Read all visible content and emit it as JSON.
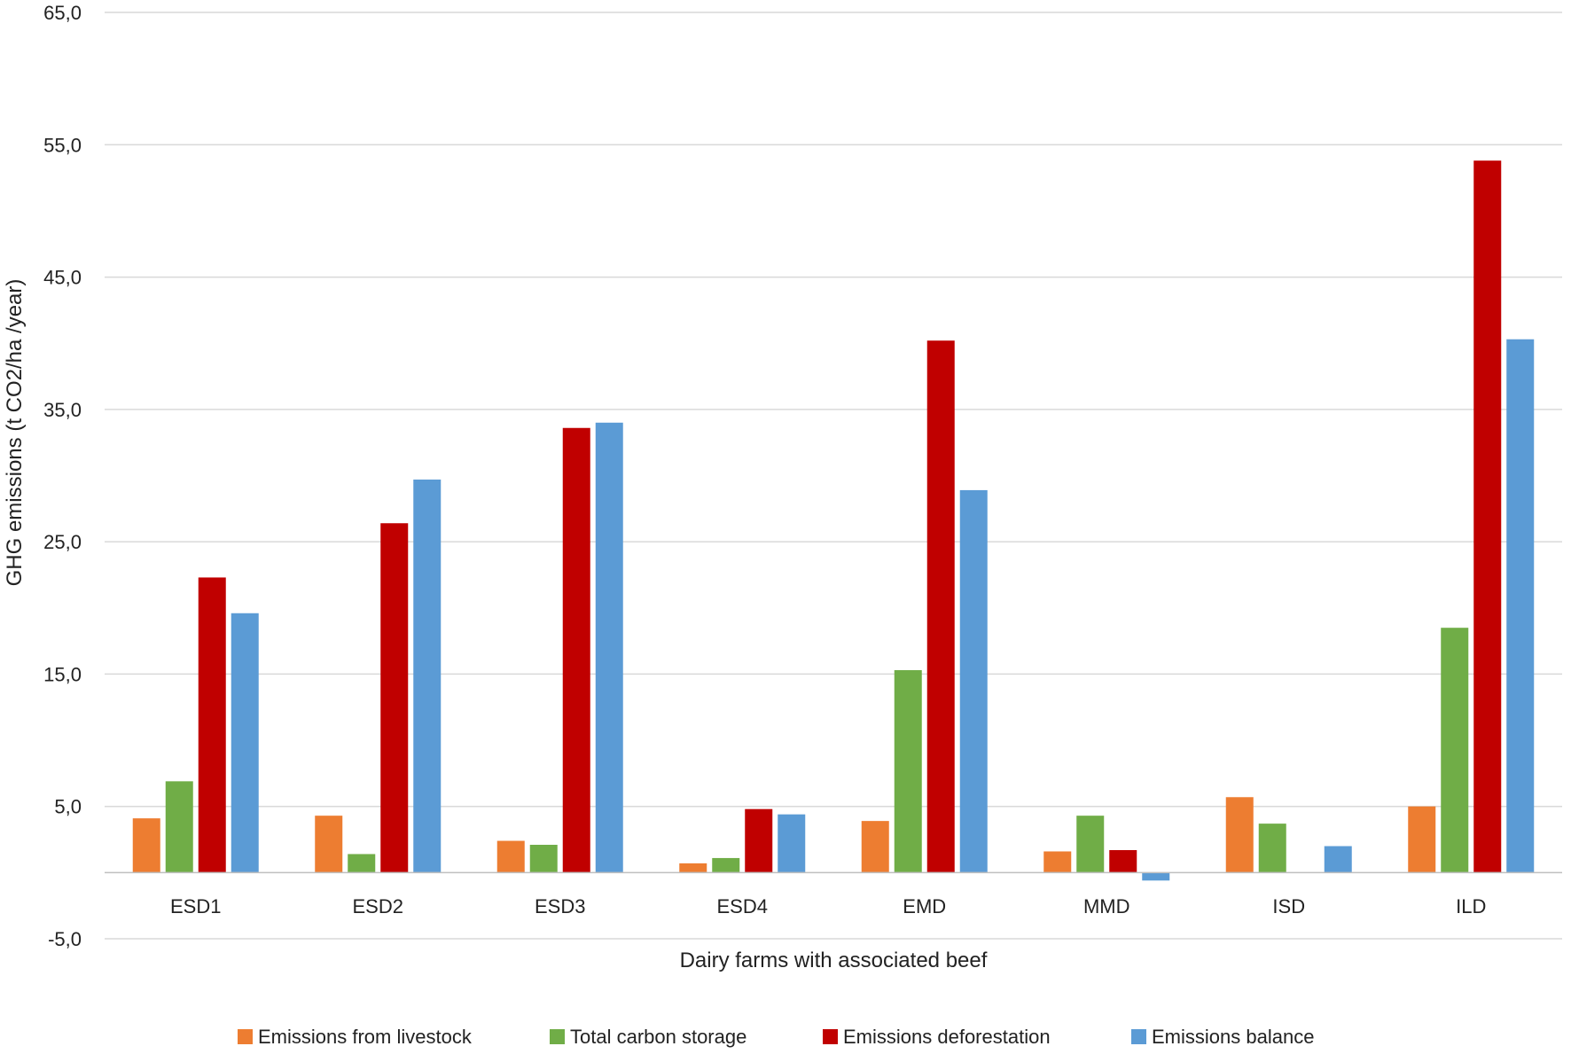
{
  "chart_data": {
    "type": "bar",
    "title": "",
    "xlabel": "Dairy farms with associated beef",
    "ylabel": "GHG emissions (t CO2/ha /year)",
    "ylim": [
      -5,
      65
    ],
    "yticks": [
      "-5,0",
      "5,0",
      "15,0",
      "25,0",
      "35,0",
      "45,0",
      "55,0",
      "65,0"
    ],
    "ytick_values": [
      -5,
      5,
      15,
      25,
      35,
      45,
      55,
      65
    ],
    "grid": true,
    "legend_position": "bottom",
    "categories": [
      "ESD1",
      "ESD2",
      "ESD3",
      "ESD4",
      "EMD",
      "MMD",
      "ISD",
      "ILD"
    ],
    "series": [
      {
        "name": "Emissions from livestock",
        "color": "#ED7D31",
        "values": [
          4.1,
          4.3,
          2.4,
          0.7,
          3.9,
          1.6,
          5.7,
          5.0
        ]
      },
      {
        "name": "Total carbon storage",
        "color": "#70AD47",
        "values": [
          6.9,
          1.4,
          2.1,
          1.1,
          15.3,
          4.3,
          3.7,
          18.5
        ]
      },
      {
        "name": "Emissions deforestation",
        "color": "#C00000",
        "values": [
          22.3,
          26.4,
          33.6,
          4.8,
          40.2,
          1.7,
          0,
          53.8
        ]
      },
      {
        "name": "Emissions balance",
        "color": "#5B9BD5",
        "values": [
          19.6,
          29.7,
          34.0,
          4.4,
          28.9,
          -0.6,
          2.0,
          40.3
        ]
      }
    ]
  }
}
